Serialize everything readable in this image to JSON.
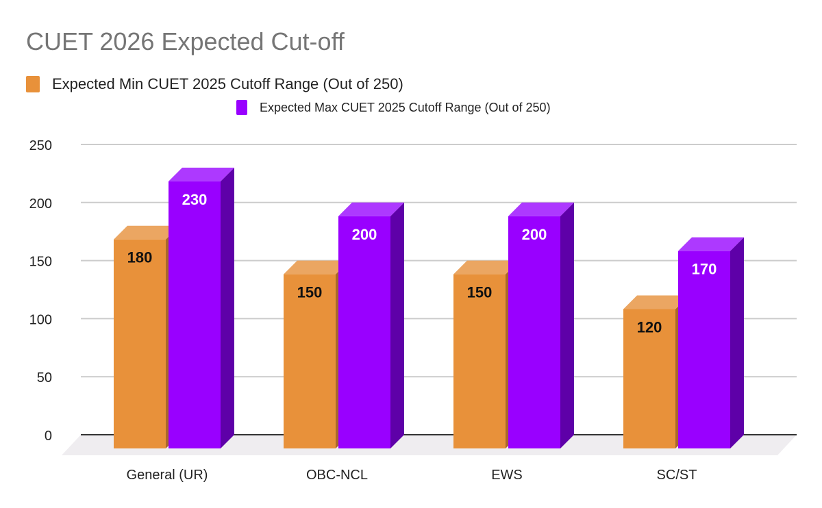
{
  "chart_data": {
    "type": "bar",
    "title": "CUET 2026 Expected Cut-off",
    "categories": [
      "General (UR)",
      "OBC-NCL",
      "EWS",
      "SC/ST"
    ],
    "series": [
      {
        "name": "Expected Min CUET 2025 Cutoff Range (Out of 250)",
        "values": [
          180,
          150,
          150,
          120
        ],
        "color": "#e8913a",
        "top_color": "#eba662",
        "side_color": "#a9692a",
        "label_color": "#111111"
      },
      {
        "name": "Expected Max CUET 2025 Cutoff Range (Out of 250)",
        "values": [
          230,
          200,
          200,
          170
        ],
        "color": "#9900ff",
        "top_color": "#ad39ff",
        "side_color": "#5e00a8",
        "label_color": "#ffffff"
      }
    ],
    "ylim": [
      0,
      250
    ],
    "yticks": [
      0,
      50,
      100,
      150,
      200,
      250
    ],
    "grid": true,
    "legend": "top-left",
    "style": "3d"
  }
}
